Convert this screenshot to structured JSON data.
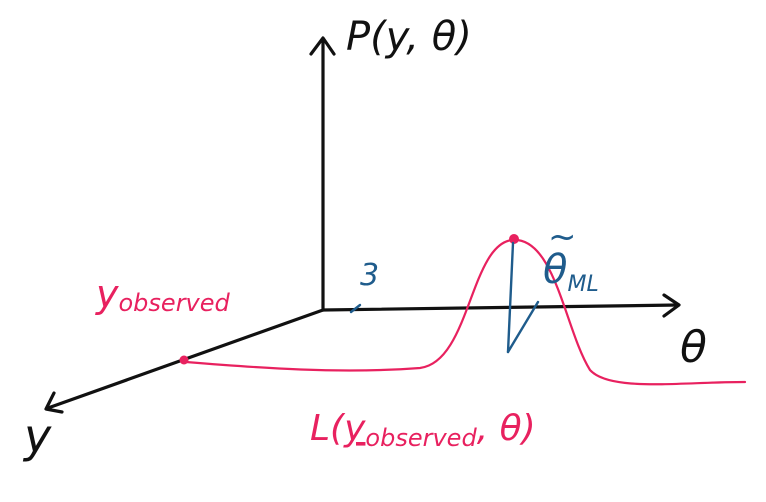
{
  "diagram": {
    "z_axis_label": "P(y, θ)",
    "x_axis_label": "θ",
    "y_axis_label": "y",
    "tick_label": "3",
    "y_observed_label": "y",
    "y_observed_subscript": "observed",
    "likelihood_label_prefix": "L(",
    "likelihood_label_var": "y",
    "likelihood_label_subscript": "observed",
    "likelihood_label_suffix": ", θ)",
    "mle_label": "θ",
    "mle_hat": "~",
    "mle_subscript": "ML",
    "colors": {
      "axes": "#111111",
      "likelihood": "#e8215f",
      "annotation": "#1f5c8c"
    }
  }
}
